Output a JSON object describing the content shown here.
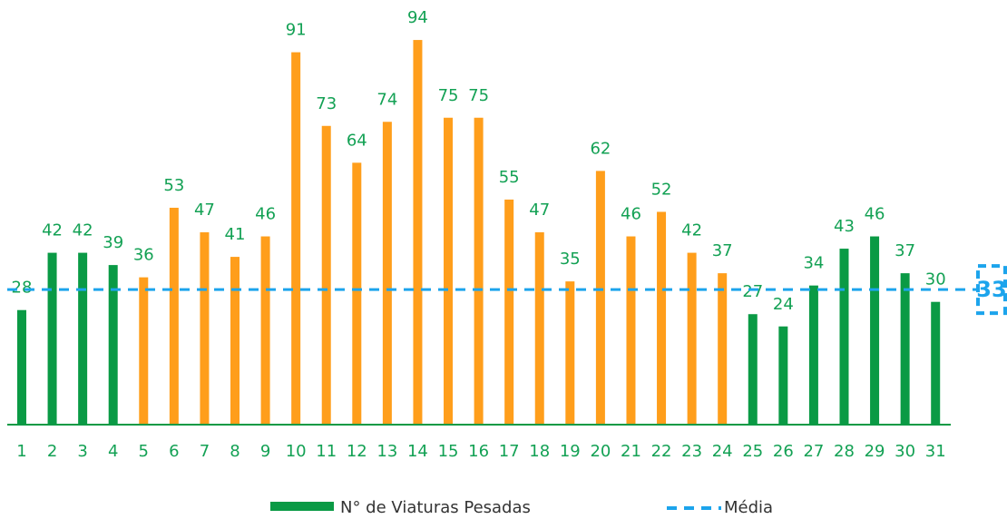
{
  "chart_data": {
    "type": "bar",
    "categories": [
      "1",
      "2",
      "3",
      "4",
      "5",
      "6",
      "7",
      "8",
      "9",
      "10",
      "11",
      "12",
      "13",
      "14",
      "15",
      "16",
      "17",
      "18",
      "19",
      "20",
      "21",
      "22",
      "23",
      "24",
      "25",
      "26",
      "27",
      "28",
      "29",
      "30",
      "31"
    ],
    "series": [
      {
        "name": "N° de Viaturas Pesadas",
        "color": "#0a9a45",
        "colors": [
          "#0a9a45",
          "#0a9a45",
          "#0a9a45",
          "#0a9a45",
          "#ff9e1b",
          "#ff9e1b",
          "#ff9e1b",
          "#ff9e1b",
          "#ff9e1b",
          "#ff9e1b",
          "#ff9e1b",
          "#ff9e1b",
          "#ff9e1b",
          "#ff9e1b",
          "#ff9e1b",
          "#ff9e1b",
          "#ff9e1b",
          "#ff9e1b",
          "#ff9e1b",
          "#ff9e1b",
          "#ff9e1b",
          "#ff9e1b",
          "#ff9e1b",
          "#ff9e1b",
          "#0a9a45",
          "#0a9a45",
          "#0a9a45",
          "#0a9a45",
          "#0a9a45",
          "#0a9a45",
          "#0a9a45"
        ],
        "values": [
          28,
          42,
          42,
          39,
          36,
          53,
          47,
          41,
          46,
          91,
          73,
          64,
          74,
          94,
          75,
          75,
          55,
          47,
          35,
          62,
          46,
          52,
          42,
          37,
          27,
          24,
          34,
          43,
          46,
          37,
          30
        ]
      }
    ],
    "mean": {
      "name": "Média",
      "value": 33,
      "color": "#1ca4ec"
    },
    "ylim": [
      0,
      100
    ]
  }
}
